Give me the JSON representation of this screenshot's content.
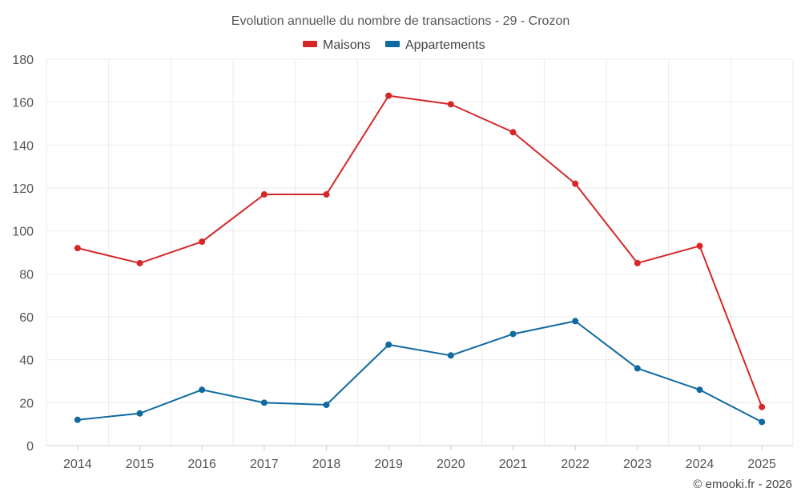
{
  "chart_data": {
    "type": "line",
    "title": "Evolution annuelle du nombre de transactions - 29 - Crozon",
    "categories": [
      "2014",
      "2015",
      "2016",
      "2017",
      "2018",
      "2019",
      "2020",
      "2021",
      "2022",
      "2023",
      "2024",
      "2025"
    ],
    "series": [
      {
        "name": "Maisons",
        "color": "#d62728",
        "values": [
          92,
          85,
          95,
          117,
          117,
          163,
          159,
          146,
          122,
          85,
          93,
          18
        ]
      },
      {
        "name": "Appartements",
        "color": "#0f6aa0",
        "values": [
          12,
          15,
          26,
          20,
          19,
          47,
          42,
          52,
          58,
          36,
          26,
          11
        ]
      }
    ],
    "ylim": [
      0,
      180
    ],
    "yticks": [
      0,
      20,
      40,
      60,
      80,
      100,
      120,
      140,
      160,
      180
    ],
    "grid": true,
    "legend_position": "top-center",
    "xlabel": "",
    "ylabel": ""
  },
  "credit": "© emooki.fr - 2026"
}
